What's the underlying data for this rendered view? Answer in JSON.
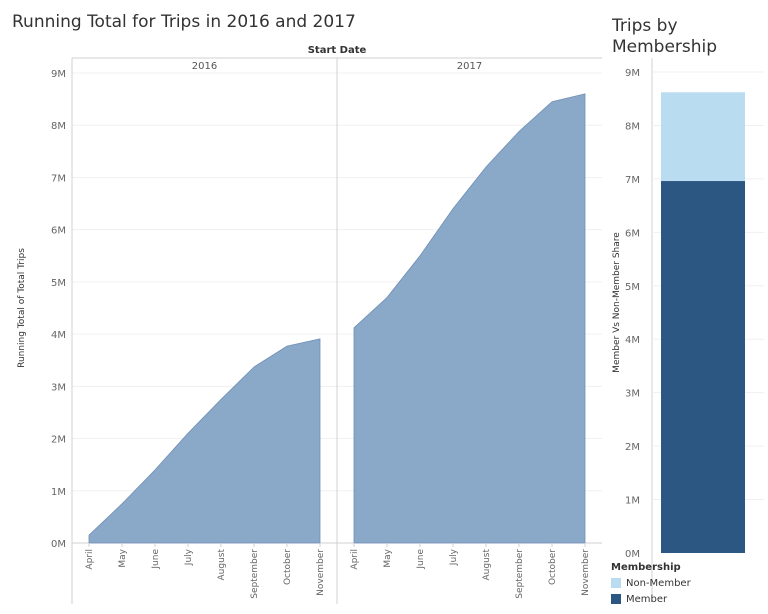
{
  "left_title": "Running Total for Trips in 2016 and 2017",
  "right_title": "Trips by Membership",
  "colors": {
    "area": "#8aa8c8",
    "area_stroke": "#6f8fb5",
    "member": "#2c5783",
    "non_member": "#b9dcf0",
    "grid": "#f0f0f0",
    "divider": "#d0d0d0",
    "tick_text": "#666666"
  },
  "chart_data": [
    {
      "type": "area",
      "title": "Running Total for Trips in 2016 and 2017",
      "column_header": "Start Date",
      "ylabel": "Running Total of Total Trips",
      "ylim": [
        0,
        9000000
      ],
      "yticks": [
        0,
        1000000,
        2000000,
        3000000,
        4000000,
        5000000,
        6000000,
        7000000,
        8000000,
        9000000
      ],
      "ytick_labels": [
        "0M",
        "1M",
        "2M",
        "3M",
        "4M",
        "5M",
        "6M",
        "7M",
        "8M",
        "9M"
      ],
      "categories": [
        "April",
        "May",
        "June",
        "July",
        "August",
        "September",
        "October",
        "November"
      ],
      "panels": [
        {
          "name": "2016",
          "values": [
            150000,
            750000,
            1400000,
            2100000,
            2750000,
            3370000,
            3770000,
            3910000
          ]
        },
        {
          "name": "2017",
          "values": [
            4120000,
            4700000,
            5500000,
            6400000,
            7200000,
            7880000,
            8450000,
            8600000
          ]
        }
      ]
    },
    {
      "type": "bar",
      "title": "Trips by Membership",
      "ylabel": "Member Vs Non-Member Share",
      "ylim": [
        0,
        9000000
      ],
      "yticks": [
        0,
        1000000,
        2000000,
        3000000,
        4000000,
        5000000,
        6000000,
        7000000,
        8000000,
        9000000
      ],
      "ytick_labels": [
        "0M",
        "1M",
        "2M",
        "3M",
        "4M",
        "5M",
        "6M",
        "7M",
        "8M",
        "9M"
      ],
      "stacked": true,
      "series": [
        {
          "name": "Member",
          "values": [
            6960000
          ]
        },
        {
          "name": "Non-Member",
          "values": [
            1660000
          ]
        }
      ],
      "legend_title": "Membership",
      "legend_items": [
        "Non-Member",
        "Member"
      ]
    }
  ]
}
